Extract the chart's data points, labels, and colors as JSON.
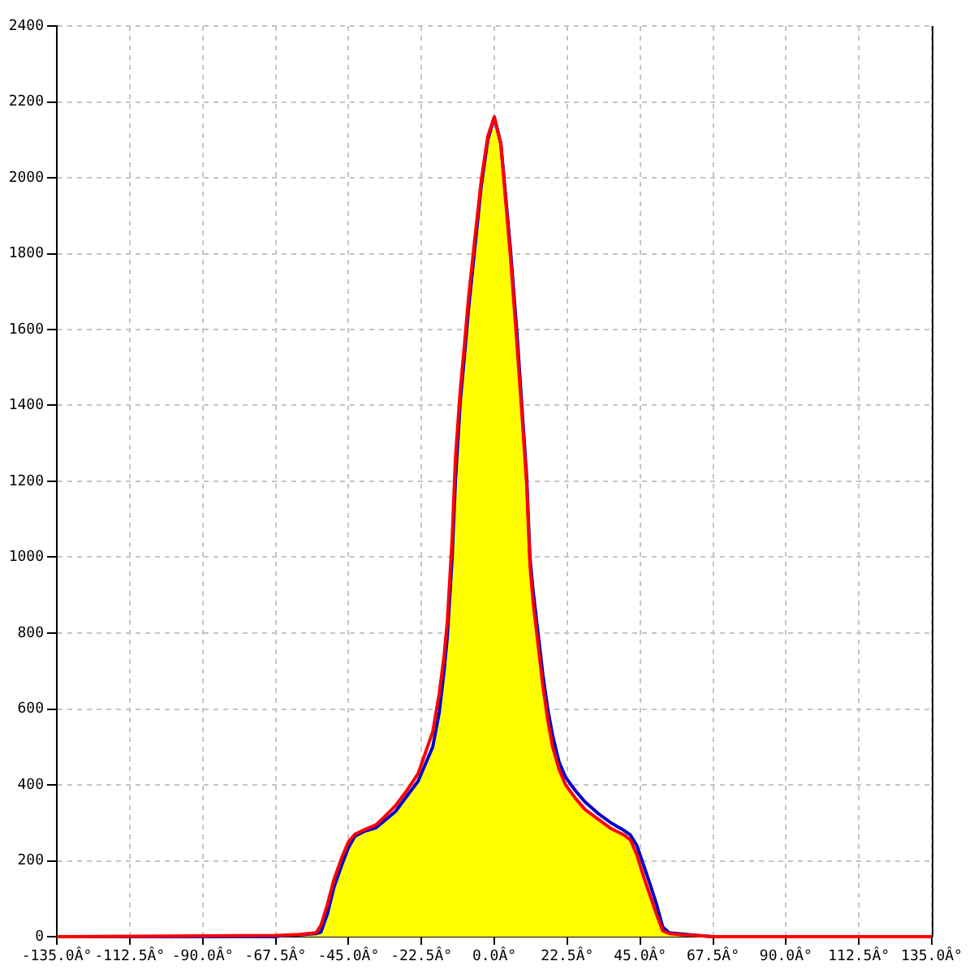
{
  "chart_data": {
    "type": "line",
    "x": [
      -135,
      -67.5,
      -65,
      -60,
      -55,
      -53.5,
      -51.5,
      -49.5,
      -47,
      -45,
      -43,
      -40,
      -36.5,
      -34,
      -30.5,
      -27,
      -23.5,
      -19,
      -17,
      -15.5,
      -14.5,
      -13,
      -12,
      -10.5,
      -9,
      -8,
      -6,
      -4,
      -2,
      0,
      2,
      3,
      5,
      7,
      8.5,
      10,
      11,
      12,
      13.5,
      15,
      16.5,
      18,
      20,
      22,
      25,
      28,
      32,
      36,
      40,
      42,
      44,
      46,
      48,
      50,
      52,
      54,
      58,
      62,
      67.5,
      135
    ],
    "series": [
      {
        "color": "#ff0000",
        "values": [
          0,
          3,
          4,
          6,
          10,
          30,
          85,
          150,
          210,
          250,
          270,
          282,
          295,
          315,
          345,
          385,
          430,
          540,
          640,
          740,
          830,
          1050,
          1260,
          1440,
          1580,
          1680,
          1840,
          1995,
          2110,
          2160,
          2090,
          1990,
          1790,
          1560,
          1380,
          1190,
          980,
          880,
          770,
          660,
          570,
          500,
          440,
          400,
          365,
          335,
          310,
          285,
          268,
          255,
          215,
          160,
          110,
          60,
          15,
          8,
          5,
          3,
          0,
          0
        ]
      },
      {
        "color": "#0000cc",
        "values": [
          0,
          0,
          3,
          5,
          8,
          12,
          60,
          130,
          190,
          235,
          265,
          278,
          287,
          305,
          330,
          370,
          410,
          500,
          590,
          700,
          790,
          1000,
          1200,
          1410,
          1550,
          1650,
          1815,
          1980,
          2100,
          2160,
          2090,
          2000,
          1810,
          1590,
          1400,
          1210,
          1000,
          910,
          800,
          690,
          600,
          530,
          460,
          420,
          385,
          355,
          325,
          300,
          280,
          268,
          240,
          190,
          140,
          87,
          25,
          10,
          7,
          4,
          0,
          0
        ]
      },
      {
        "type": "area",
        "color": "#ffff00",
        "x": [
          -135,
          -67.5,
          -62.5,
          -57.5,
          -54,
          -52.5,
          -50.5,
          -48,
          -46,
          -44,
          -41.5,
          -38,
          -35,
          -32,
          -29,
          -25,
          -21,
          -18,
          -16,
          -14,
          -12.5,
          -11,
          -9.5,
          -7,
          -5,
          -3,
          -1,
          1,
          2.5,
          4,
          6,
          7.5,
          9,
          10.5,
          11.5,
          13,
          14,
          15.75,
          17,
          19,
          21,
          23.5,
          26.5,
          30,
          34,
          38,
          41,
          43,
          45,
          47,
          49,
          51,
          53,
          56,
          60,
          64,
          67.5,
          135
        ],
        "values": [
          0,
          0,
          4,
          6,
          11,
          36,
          95,
          166,
          212,
          250,
          271,
          283,
          298,
          319,
          347,
          393,
          460,
          545,
          663,
          860,
          1100,
          1340,
          1503,
          1732,
          1898,
          2040,
          2130,
          2125,
          2040,
          1890,
          1675,
          1500,
          1317,
          1085,
          930,
          807,
          733,
          615,
          547,
          470,
          420,
          383,
          350,
          323,
          298,
          277,
          262,
          235,
          188,
          135,
          85,
          38,
          12,
          7,
          4,
          2,
          0,
          0
        ]
      }
    ],
    "xlim": [
      -135,
      135
    ],
    "xticks": [
      {
        "value": -135,
        "label": "-135.0Â°"
      },
      {
        "value": -112.5,
        "label": "-112.5Â°"
      },
      {
        "value": -90,
        "label": "-90.0Â°"
      },
      {
        "value": -67.5,
        "label": "-67.5Â°"
      },
      {
        "value": -45,
        "label": "-45.0Â°"
      },
      {
        "value": -22.5,
        "label": "-22.5Â°"
      },
      {
        "value": 0,
        "label": "0.0Â°"
      },
      {
        "value": 22.5,
        "label": "22.5Â°"
      },
      {
        "value": 45,
        "label": "45.0Â°"
      },
      {
        "value": 67.5,
        "label": "67.5Â°"
      },
      {
        "value": 90,
        "label": "90.0Â°"
      },
      {
        "value": 112.5,
        "label": "112.5Â°"
      },
      {
        "value": 135,
        "label": "135.0Â°"
      }
    ],
    "ylim": [
      0,
      2400
    ],
    "yticks": [
      0,
      200,
      400,
      600,
      800,
      1000,
      1200,
      1400,
      1600,
      1800,
      2000,
      2200,
      2400
    ],
    "grid": true,
    "marker": "none",
    "line_style": "solid"
  }
}
